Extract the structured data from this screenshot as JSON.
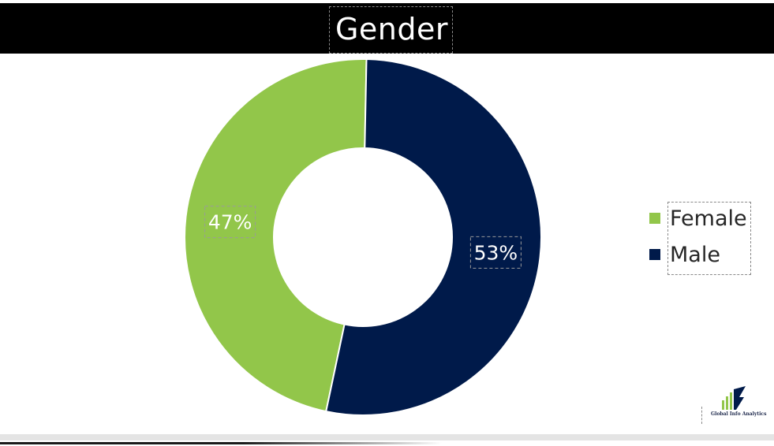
{
  "chart_data": {
    "type": "pie",
    "title": "Gender",
    "donut": true,
    "categories": [
      "Female",
      "Male"
    ],
    "values": [
      47,
      53
    ],
    "data_labels": [
      "47%",
      "53%"
    ],
    "legend": "right",
    "colors": {
      "Female": "#92c64a",
      "Male": "#001a4a"
    }
  },
  "logo": {
    "text": "Global Info Analytics",
    "colors": {
      "bar": "#92c64a",
      "mark": "#001a4a"
    }
  }
}
